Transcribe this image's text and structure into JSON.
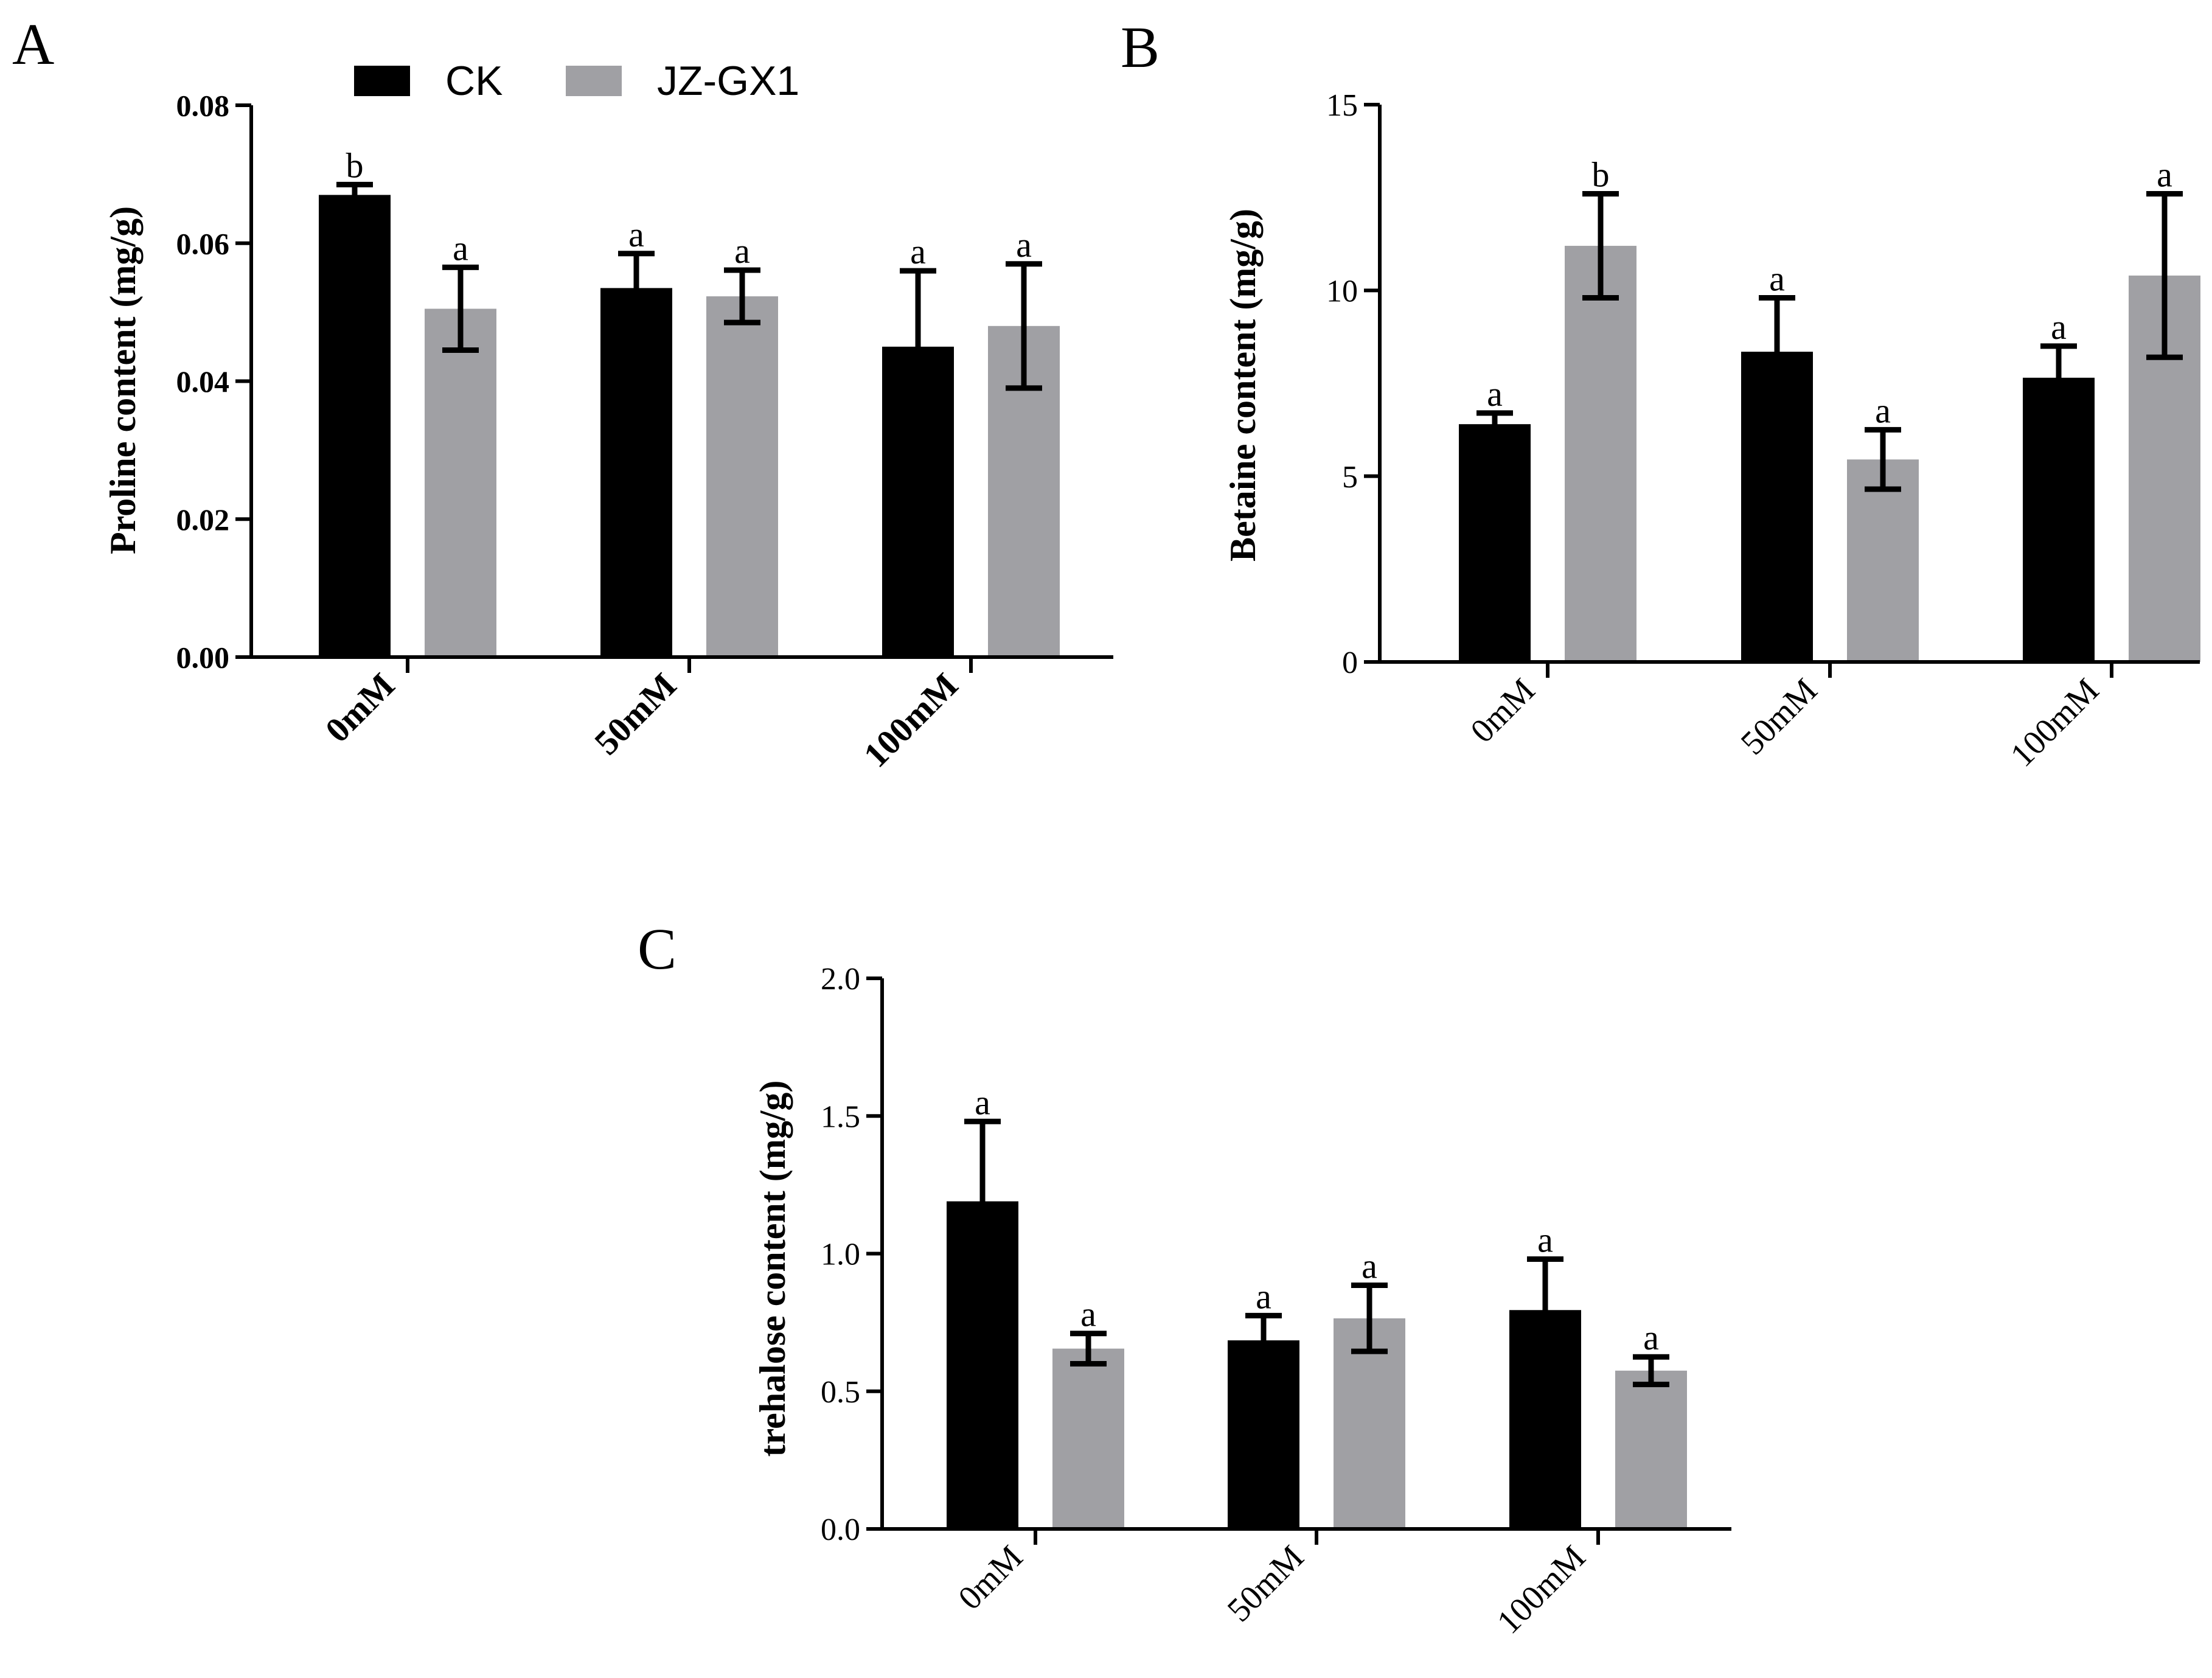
{
  "figure": {
    "legend": [
      {
        "name": "CK",
        "color": "#000000"
      },
      {
        "name": "JZ-GX1",
        "color": "#a0a0a4"
      }
    ]
  },
  "chart_data": [
    {
      "panel_label": "A",
      "type": "bar",
      "title": "",
      "xlabel": "",
      "ylabel": "Proline content (mg/g)",
      "categories": [
        "0mM",
        "50mM",
        "100mM"
      ],
      "ylim": [
        0,
        0.08
      ],
      "yticks": [
        "0.00",
        "0.02",
        "0.04",
        "0.06",
        "0.08"
      ],
      "tick_style": "bold",
      "legend_position": "top",
      "series": [
        {
          "name": "CK",
          "color": "#000000",
          "values": [
            0.067,
            0.0535,
            0.045
          ],
          "errors": [
            0.0015,
            0.005,
            0.011
          ],
          "letters": [
            "b",
            "a",
            "a"
          ]
        },
        {
          "name": "JZ-GX1",
          "color": "#a0a0a4",
          "values": [
            0.0505,
            0.0523,
            0.048
          ],
          "errors": [
            0.006,
            0.0038,
            0.009
          ],
          "letters": [
            "a",
            "a",
            "a"
          ]
        }
      ]
    },
    {
      "panel_label": "B",
      "type": "bar",
      "title": "",
      "xlabel": "",
      "ylabel": "Betaine content (mg/g)",
      "categories": [
        "0mM",
        "50mM",
        "100mM"
      ],
      "ylim": [
        0,
        15
      ],
      "yticks": [
        "0",
        "5",
        "10",
        "15"
      ],
      "tick_style": "normal",
      "series": [
        {
          "name": "CK",
          "color": "#000000",
          "values": [
            6.4,
            8.35,
            7.65
          ],
          "errors": [
            0.3,
            1.45,
            0.85
          ],
          "letters": [
            "a",
            "a",
            "a"
          ]
        },
        {
          "name": "JZ-GX1",
          "color": "#a0a0a4",
          "values": [
            11.2,
            5.45,
            10.4
          ],
          "errors": [
            1.4,
            0.8,
            2.2
          ],
          "letters": [
            "b",
            "a",
            "a"
          ]
        }
      ]
    },
    {
      "panel_label": "C",
      "type": "bar",
      "title": "",
      "xlabel": "",
      "ylabel": "trehalose content (mg/g)",
      "categories": [
        "0mM",
        "50mM",
        "100mM"
      ],
      "ylim": [
        0,
        2.0
      ],
      "yticks": [
        "0.0",
        "0.5",
        "1.0",
        "1.5",
        "2.0"
      ],
      "tick_style": "normal",
      "series": [
        {
          "name": "CK",
          "color": "#000000",
          "values": [
            1.19,
            0.685,
            0.795
          ],
          "errors": [
            0.29,
            0.09,
            0.185
          ],
          "letters": [
            "a",
            "a",
            "a"
          ]
        },
        {
          "name": "JZ-GX1",
          "color": "#a0a0a4",
          "values": [
            0.655,
            0.765,
            0.575
          ],
          "errors": [
            0.055,
            0.12,
            0.05
          ],
          "letters": [
            "a",
            "a",
            "a"
          ]
        }
      ]
    }
  ]
}
